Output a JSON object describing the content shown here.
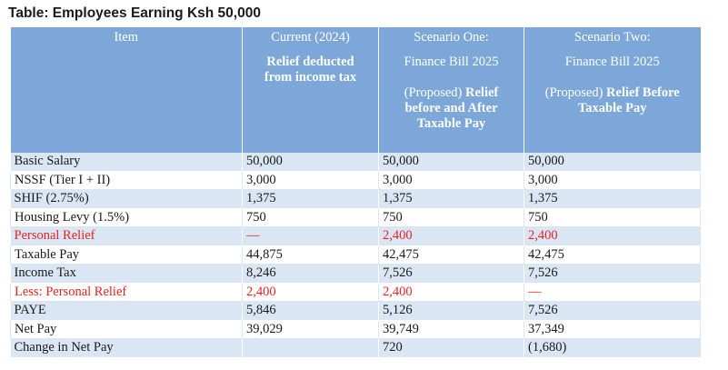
{
  "title": "Table: Employees Earning Ksh 50,000",
  "header": {
    "item": "Item",
    "current": {
      "line1": "Current (2024)",
      "bold1": "Relief deducted",
      "bold2": "from income tax"
    },
    "scenario_one": {
      "line1": "Scenario One:",
      "line2": "Finance Bill 2025",
      "prefix": "(Proposed) ",
      "bold1": "Relief",
      "bold2": "before and After",
      "bold3": "Taxable Pay"
    },
    "scenario_two": {
      "line1": "Scenario Two:",
      "line2": "Finance Bill 2025",
      "prefix": "(Proposed) ",
      "bold1": "Relief Before",
      "bold2": "Taxable Pay"
    }
  },
  "rows": [
    {
      "item": "Basic Salary",
      "current": "50,000",
      "s1": "50,000",
      "s2": "50,000",
      "red": false
    },
    {
      "item": "NSSF (Tier I + II)",
      "current": "3,000",
      "s1": "3,000",
      "s2": "3,000",
      "red": false
    },
    {
      "item": "SHIF (2.75%)",
      "current": "1,375",
      "s1": "1,375",
      "s2": "1,375",
      "red": false
    },
    {
      "item": "Housing Levy (1.5%)",
      "current": "750",
      "s1": "750",
      "s2": "750",
      "red": false
    },
    {
      "item": "Personal Relief",
      "current": "—",
      "s1": "2,400",
      "s2": "2,400",
      "red": true
    },
    {
      "item": "Taxable Pay",
      "current": "44,875",
      "s1": "42,475",
      "s2": "42,475",
      "red": false
    },
    {
      "item": "Income Tax",
      "current": "8,246",
      "s1": "7,526",
      "s2": "7,526",
      "red": false
    },
    {
      "item": "Less: Personal Relief",
      "current": "2,400",
      "s1": "2,400",
      "s2": "—",
      "red": true
    },
    {
      "item": "PAYE",
      "current": "5,846",
      "s1": "5,126",
      "s2": "7,526",
      "red": false
    },
    {
      "item": "Net Pay",
      "current": "39,029",
      "s1": "39,749",
      "s2": "37,349",
      "red": false
    },
    {
      "item": "Change in Net Pay",
      "current": "",
      "s1": "720",
      "s2": "(1,680)",
      "red": false
    }
  ]
}
